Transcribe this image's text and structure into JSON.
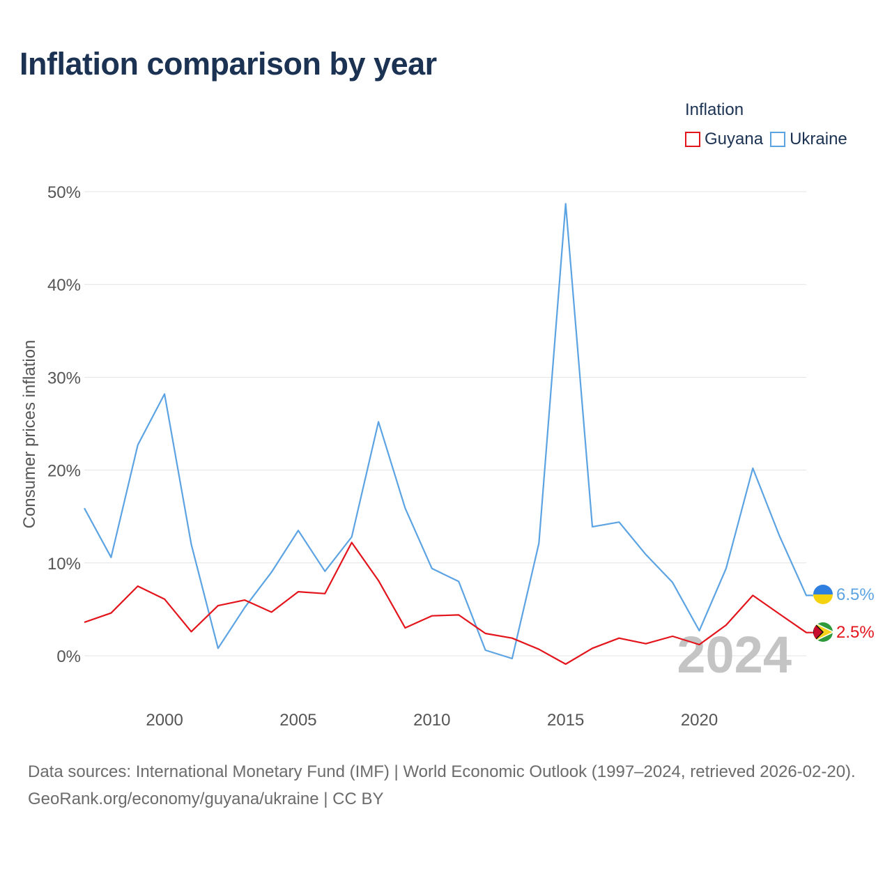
{
  "title": "Inflation comparison by year",
  "legend": {
    "title": "Inflation",
    "items": [
      {
        "name": "Guyana",
        "color": "#e3141b"
      },
      {
        "name": "Ukraine",
        "color": "#5ca3e3"
      }
    ]
  },
  "watermark_year": "2024",
  "footer": {
    "source": "Data sources: International Monetary Fund (IMF) | World Economic Outlook (1997–2024, retrieved 2026-02-20).",
    "credit": "GeoRank.org/economy/guyana/ukraine | CC BY"
  },
  "chart_data": {
    "type": "line",
    "title": "Inflation comparison by year",
    "ylabel": "Consumer prices inflation",
    "xlabel": "",
    "xlim": [
      1997,
      2024
    ],
    "ylim": [
      -5,
      50
    ],
    "xticks": [
      2000,
      2005,
      2010,
      2015,
      2020
    ],
    "yticks": [
      0,
      10,
      20,
      30,
      40,
      50
    ],
    "ytick_labels": [
      "0%",
      "10%",
      "20%",
      "30%",
      "40%",
      "50%"
    ],
    "grid": true,
    "legend_position": "top-right",
    "x": [
      1997,
      1998,
      1999,
      2000,
      2001,
      2002,
      2003,
      2004,
      2005,
      2006,
      2007,
      2008,
      2009,
      2010,
      2011,
      2012,
      2013,
      2014,
      2015,
      2016,
      2017,
      2018,
      2019,
      2020,
      2021,
      2022,
      2023,
      2024
    ],
    "series": [
      {
        "name": "Guyana",
        "color": "#e3141b",
        "end_label": "2.5%",
        "values": [
          3.6,
          4.6,
          7.5,
          6.1,
          2.6,
          5.4,
          6.0,
          4.7,
          6.9,
          6.7,
          12.2,
          8.1,
          3.0,
          4.3,
          4.4,
          2.4,
          1.9,
          0.7,
          -0.9,
          0.8,
          1.9,
          1.3,
          2.1,
          1.2,
          3.3,
          6.5,
          4.5,
          2.5
        ]
      },
      {
        "name": "Ukraine",
        "color": "#5ca3e3",
        "end_label": "6.5%",
        "values": [
          15.9,
          10.6,
          22.7,
          28.2,
          12.0,
          0.8,
          5.2,
          9.0,
          13.5,
          9.1,
          12.8,
          25.2,
          15.9,
          9.4,
          8.0,
          0.6,
          -0.3,
          12.1,
          48.7,
          13.9,
          14.4,
          10.9,
          7.9,
          2.7,
          9.4,
          20.2,
          12.9,
          6.5
        ]
      }
    ]
  }
}
